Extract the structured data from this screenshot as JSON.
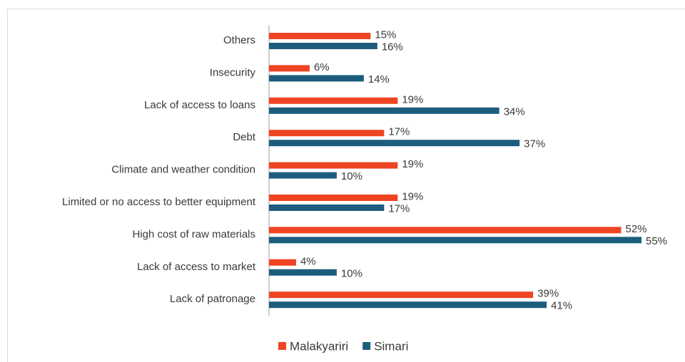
{
  "chart_data": {
    "type": "bar",
    "orientation": "horizontal",
    "categories": [
      "Others",
      "Insecurity",
      "Lack of access to loans",
      "Debt",
      "Climate and weather condition",
      "Limited or no access to better equipment",
      "High cost of raw materials",
      "Lack of access to market",
      "Lack of patronage"
    ],
    "series": [
      {
        "name": "Malakyariri",
        "color": "#ef4423",
        "values": [
          15,
          6,
          19,
          17,
          19,
          19,
          52,
          4,
          39
        ],
        "value_labels": [
          "15%",
          "6%",
          "19%",
          "17%",
          "19%",
          "19%",
          "52%",
          "4%",
          "39%"
        ]
      },
      {
        "name": "Simari",
        "color": "#1c5d7e",
        "values": [
          16,
          14,
          34,
          37,
          10,
          17,
          55,
          10,
          41
        ],
        "value_labels": [
          "16%",
          "14%",
          "34%",
          "37%",
          "10%",
          "17%",
          "55%",
          "10%",
          "41%"
        ]
      }
    ],
    "legend": "bottom"
  }
}
